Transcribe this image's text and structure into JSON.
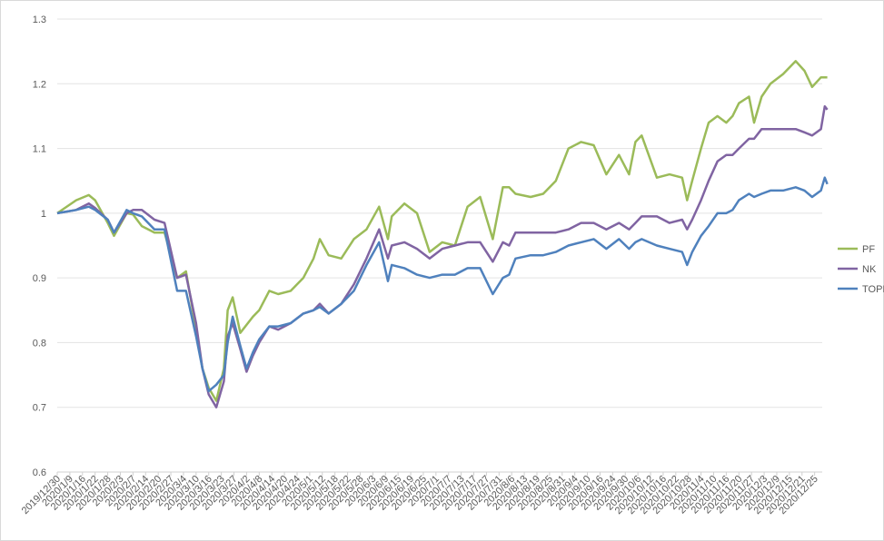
{
  "chart_data": {
    "type": "line",
    "title": "",
    "xlabel": "",
    "ylabel": "",
    "ylim": [
      0.6,
      1.3
    ],
    "yticks": [
      "0.6",
      "0.7",
      "0.8",
      "0.9",
      "1",
      "1.1",
      "1.2",
      "1.3"
    ],
    "grid": "horizontal",
    "legend_position": "right",
    "x_tick_labels": [
      "2019/12/30",
      "2020/1/9",
      "2020/1/16",
      "2020/1/22",
      "2020/1/28",
      "2020/2/3",
      "2020/2/7",
      "2020/2/14",
      "2020/2/20",
      "2020/2/27",
      "2020/3/4",
      "2020/3/10",
      "2020/3/16",
      "2020/3/23",
      "2020/3/27",
      "2020/4/2",
      "2020/4/8",
      "2020/4/14",
      "2020/4/20",
      "2020/4/24",
      "2020/5/1",
      "2020/5/12",
      "2020/5/18",
      "2020/5/22",
      "2020/5/28",
      "2020/6/3",
      "2020/6/9",
      "2020/6/15",
      "2020/6/19",
      "2020/6/25",
      "2020/7/1",
      "2020/7/7",
      "2020/7/13",
      "2020/7/17",
      "2020/7/27",
      "2020/7/31",
      "2020/8/6",
      "2020/8/13",
      "2020/8/19",
      "2020/8/25",
      "2020/8/31",
      "2020/9/4",
      "2020/9/10",
      "2020/9/16",
      "2020/9/24",
      "2020/9/30",
      "2020/10/6",
      "2020/10/12",
      "2020/10/16",
      "2020/10/22",
      "2020/10/28",
      "2020/11/4",
      "2020/11/10",
      "2020/11/16",
      "2020/11/20",
      "2020/11/27",
      "2020/12/3",
      "2020/12/9",
      "2020/12/15",
      "2020/12/21",
      "2020/12/25"
    ],
    "series": [
      {
        "name": "PF",
        "color": "#9bbb59",
        "points": [
          [
            0,
            1.0
          ],
          [
            1.5,
            1.02
          ],
          [
            2.5,
            1.028
          ],
          [
            3,
            1.02
          ],
          [
            4,
            0.985
          ],
          [
            4.5,
            0.965
          ],
          [
            5.5,
            1.0
          ],
          [
            6,
            0.998
          ],
          [
            6.7,
            0.98
          ],
          [
            7.7,
            0.97
          ],
          [
            8.5,
            0.97
          ],
          [
            9.5,
            0.9
          ],
          [
            10.2,
            0.91
          ],
          [
            11,
            0.82
          ],
          [
            11.5,
            0.76
          ],
          [
            12,
            0.73
          ],
          [
            12.6,
            0.71
          ],
          [
            13.2,
            0.76
          ],
          [
            13.5,
            0.85
          ],
          [
            13.9,
            0.87
          ],
          [
            14.5,
            0.815
          ],
          [
            15.5,
            0.84
          ],
          [
            16,
            0.85
          ],
          [
            16.8,
            0.88
          ],
          [
            17.5,
            0.875
          ],
          [
            18.5,
            0.88
          ],
          [
            19.5,
            0.9
          ],
          [
            20.3,
            0.93
          ],
          [
            20.8,
            0.96
          ],
          [
            21.5,
            0.935
          ],
          [
            22.5,
            0.93
          ],
          [
            23.5,
            0.96
          ],
          [
            24.5,
            0.975
          ],
          [
            25.5,
            1.01
          ],
          [
            26.2,
            0.96
          ],
          [
            26.5,
            0.995
          ],
          [
            27.5,
            1.015
          ],
          [
            28.5,
            1.0
          ],
          [
            29.5,
            0.94
          ],
          [
            30.5,
            0.955
          ],
          [
            31.5,
            0.95
          ],
          [
            32.5,
            1.01
          ],
          [
            33.5,
            1.025
          ],
          [
            34.5,
            0.96
          ],
          [
            35.3,
            1.04
          ],
          [
            35.8,
            1.04
          ],
          [
            36.3,
            1.03
          ],
          [
            37.5,
            1.025
          ],
          [
            38.5,
            1.03
          ],
          [
            39.5,
            1.05
          ],
          [
            40.5,
            1.1
          ],
          [
            41.5,
            1.11
          ],
          [
            42.5,
            1.105
          ],
          [
            43.5,
            1.06
          ],
          [
            44.5,
            1.09
          ],
          [
            45.3,
            1.06
          ],
          [
            45.8,
            1.11
          ],
          [
            46.3,
            1.12
          ],
          [
            47.5,
            1.055
          ],
          [
            48.5,
            1.06
          ],
          [
            49.5,
            1.055
          ],
          [
            49.9,
            1.02
          ],
          [
            50.3,
            1.05
          ],
          [
            51,
            1.1
          ],
          [
            51.6,
            1.14
          ],
          [
            52.3,
            1.15
          ],
          [
            53,
            1.14
          ],
          [
            53.5,
            1.15
          ],
          [
            54,
            1.17
          ],
          [
            54.8,
            1.18
          ],
          [
            55.2,
            1.14
          ],
          [
            55.8,
            1.18
          ],
          [
            56.5,
            1.2
          ],
          [
            57.5,
            1.215
          ],
          [
            58.5,
            1.235
          ],
          [
            59.2,
            1.22
          ],
          [
            59.8,
            1.195
          ],
          [
            60.5,
            1.21
          ],
          [
            61,
            1.21
          ]
        ]
      },
      {
        "name": "NK",
        "color": "#8064a2",
        "points": [
          [
            0,
            1.0
          ],
          [
            1.5,
            1.005
          ],
          [
            2.5,
            1.015
          ],
          [
            3,
            1.008
          ],
          [
            4,
            0.99
          ],
          [
            4.5,
            0.97
          ],
          [
            5.5,
            1.0
          ],
          [
            6,
            1.005
          ],
          [
            6.7,
            1.005
          ],
          [
            7.7,
            0.99
          ],
          [
            8.5,
            0.985
          ],
          [
            9.5,
            0.9
          ],
          [
            10.2,
            0.905
          ],
          [
            11,
            0.83
          ],
          [
            11.5,
            0.76
          ],
          [
            12,
            0.72
          ],
          [
            12.6,
            0.7
          ],
          [
            13.2,
            0.74
          ],
          [
            13.5,
            0.81
          ],
          [
            13.9,
            0.83
          ],
          [
            14.5,
            0.79
          ],
          [
            15,
            0.755
          ],
          [
            15.5,
            0.78
          ],
          [
            16,
            0.8
          ],
          [
            16.8,
            0.825
          ],
          [
            17.5,
            0.82
          ],
          [
            18.5,
            0.83
          ],
          [
            19.5,
            0.845
          ],
          [
            20.3,
            0.85
          ],
          [
            20.8,
            0.86
          ],
          [
            21.5,
            0.845
          ],
          [
            22.5,
            0.86
          ],
          [
            23.5,
            0.89
          ],
          [
            24.5,
            0.93
          ],
          [
            25.5,
            0.975
          ],
          [
            26.2,
            0.93
          ],
          [
            26.5,
            0.95
          ],
          [
            27.5,
            0.955
          ],
          [
            28.5,
            0.945
          ],
          [
            29.5,
            0.93
          ],
          [
            30.5,
            0.945
          ],
          [
            31.5,
            0.95
          ],
          [
            32.5,
            0.955
          ],
          [
            33.5,
            0.955
          ],
          [
            34.5,
            0.925
          ],
          [
            35.3,
            0.955
          ],
          [
            35.8,
            0.95
          ],
          [
            36.3,
            0.97
          ],
          [
            37.5,
            0.97
          ],
          [
            38.5,
            0.97
          ],
          [
            39.5,
            0.97
          ],
          [
            40.5,
            0.975
          ],
          [
            41.5,
            0.985
          ],
          [
            42.5,
            0.985
          ],
          [
            43.5,
            0.975
          ],
          [
            44.5,
            0.985
          ],
          [
            45.3,
            0.975
          ],
          [
            45.8,
            0.985
          ],
          [
            46.3,
            0.995
          ],
          [
            47.5,
            0.995
          ],
          [
            48.5,
            0.985
          ],
          [
            49.5,
            0.99
          ],
          [
            49.9,
            0.975
          ],
          [
            50.3,
            0.99
          ],
          [
            51,
            1.02
          ],
          [
            51.6,
            1.05
          ],
          [
            52.3,
            1.08
          ],
          [
            53,
            1.09
          ],
          [
            53.5,
            1.09
          ],
          [
            54,
            1.1
          ],
          [
            54.8,
            1.115
          ],
          [
            55.2,
            1.115
          ],
          [
            55.8,
            1.13
          ],
          [
            56.5,
            1.13
          ],
          [
            57.5,
            1.13
          ],
          [
            58.5,
            1.13
          ],
          [
            59.2,
            1.125
          ],
          [
            59.8,
            1.12
          ],
          [
            60.5,
            1.13
          ],
          [
            60.8,
            1.165
          ],
          [
            61,
            1.16
          ]
        ]
      },
      {
        "name": "TOPIX",
        "color": "#4f81bd",
        "points": [
          [
            0,
            1.0
          ],
          [
            1.5,
            1.005
          ],
          [
            2.5,
            1.01
          ],
          [
            3,
            1.005
          ],
          [
            4,
            0.99
          ],
          [
            4.5,
            0.97
          ],
          [
            5.5,
            1.005
          ],
          [
            6,
            1.0
          ],
          [
            6.7,
            0.995
          ],
          [
            7.7,
            0.975
          ],
          [
            8.5,
            0.975
          ],
          [
            9.5,
            0.88
          ],
          [
            10.2,
            0.88
          ],
          [
            11,
            0.81
          ],
          [
            11.5,
            0.76
          ],
          [
            12,
            0.725
          ],
          [
            12.6,
            0.735
          ],
          [
            13.2,
            0.75
          ],
          [
            13.5,
            0.8
          ],
          [
            13.9,
            0.84
          ],
          [
            14.5,
            0.795
          ],
          [
            15,
            0.76
          ],
          [
            15.5,
            0.785
          ],
          [
            16,
            0.805
          ],
          [
            16.8,
            0.825
          ],
          [
            17.5,
            0.825
          ],
          [
            18.5,
            0.83
          ],
          [
            19.5,
            0.845
          ],
          [
            20.3,
            0.85
          ],
          [
            20.8,
            0.855
          ],
          [
            21.5,
            0.845
          ],
          [
            22.5,
            0.86
          ],
          [
            23.5,
            0.88
          ],
          [
            24.5,
            0.92
          ],
          [
            25.5,
            0.955
          ],
          [
            26.2,
            0.895
          ],
          [
            26.5,
            0.92
          ],
          [
            27.5,
            0.915
          ],
          [
            28.5,
            0.905
          ],
          [
            29.5,
            0.9
          ],
          [
            30.5,
            0.905
          ],
          [
            31.5,
            0.905
          ],
          [
            32.5,
            0.915
          ],
          [
            33.5,
            0.915
          ],
          [
            34.5,
            0.875
          ],
          [
            35.3,
            0.9
          ],
          [
            35.8,
            0.905
          ],
          [
            36.3,
            0.93
          ],
          [
            37.5,
            0.935
          ],
          [
            38.5,
            0.935
          ],
          [
            39.5,
            0.94
          ],
          [
            40.5,
            0.95
          ],
          [
            41.5,
            0.955
          ],
          [
            42.5,
            0.96
          ],
          [
            43.5,
            0.945
          ],
          [
            44.5,
            0.96
          ],
          [
            45.3,
            0.945
          ],
          [
            45.8,
            0.955
          ],
          [
            46.3,
            0.96
          ],
          [
            47.5,
            0.95
          ],
          [
            48.5,
            0.945
          ],
          [
            49.5,
            0.94
          ],
          [
            49.9,
            0.92
          ],
          [
            50.3,
            0.94
          ],
          [
            51,
            0.965
          ],
          [
            51.6,
            0.98
          ],
          [
            52.3,
            1.0
          ],
          [
            53,
            1.0
          ],
          [
            53.5,
            1.005
          ],
          [
            54,
            1.02
          ],
          [
            54.8,
            1.03
          ],
          [
            55.2,
            1.025
          ],
          [
            55.8,
            1.03
          ],
          [
            56.5,
            1.035
          ],
          [
            57.5,
            1.035
          ],
          [
            58.5,
            1.04
          ],
          [
            59.2,
            1.035
          ],
          [
            59.8,
            1.025
          ],
          [
            60.5,
            1.035
          ],
          [
            60.8,
            1.055
          ],
          [
            61,
            1.045
          ]
        ]
      }
    ]
  }
}
